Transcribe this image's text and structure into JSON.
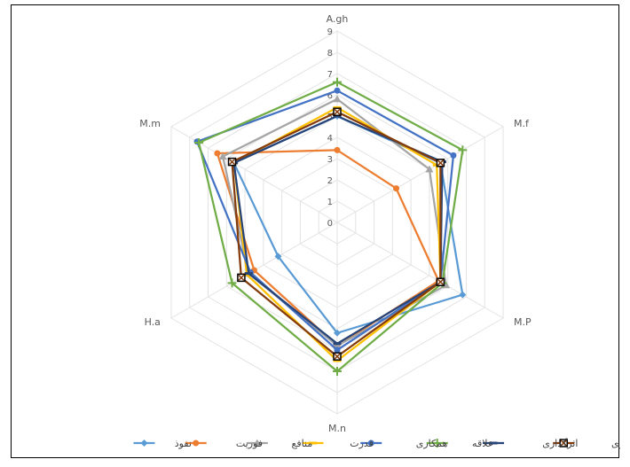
{
  "chart_data": {
    "type": "radar",
    "axes": [
      "A.gh",
      "M.f",
      "M.P",
      "M.n",
      "H.a",
      "M.m"
    ],
    "rlim": [
      0,
      9
    ],
    "ticks": [
      "0",
      "1",
      "2",
      "3",
      "4",
      "5",
      "6",
      "7",
      "8",
      "9"
    ],
    "grid": true,
    "legend_position": "bottom",
    "series": [
      {
        "name": "نفوذ",
        "color": "#5B9BD5",
        "marker": "diamond",
        "values": [
          5.0,
          5.6,
          6.8,
          5.2,
          3.2,
          5.6
        ]
      },
      {
        "name": "فوریت",
        "color": "#ED7D31",
        "marker": "circle",
        "values": [
          3.4,
          3.2,
          5.5,
          5.8,
          4.5,
          6.5
        ]
      },
      {
        "name": "منافع",
        "color": "#A5A5A5",
        "marker": "triangle",
        "values": [
          5.8,
          5.0,
          5.9,
          5.8,
          4.8,
          6.2
        ]
      },
      {
        "name": "قدرت",
        "color": "#FFC000",
        "marker": "dash",
        "values": [
          5.4,
          5.4,
          5.6,
          6.5,
          4.9,
          5.6
        ]
      },
      {
        "name": "همکاری",
        "color": "#4472C4",
        "marker": "circle",
        "values": [
          6.2,
          6.3,
          5.6,
          6.0,
          4.7,
          7.6
        ]
      },
      {
        "name": "علاقه",
        "color": "#70AD47",
        "marker": "plus",
        "values": [
          6.6,
          6.8,
          5.7,
          7.0,
          5.7,
          7.5
        ]
      },
      {
        "name": "اثرگذاری",
        "color": "#264478",
        "marker": "dash",
        "values": [
          5.0,
          5.7,
          5.6,
          5.7,
          4.8,
          5.6
        ]
      },
      {
        "name": "اثرپذیری",
        "color": "#843C0C",
        "marker": "square-x",
        "values": [
          5.2,
          5.6,
          5.6,
          6.3,
          5.2,
          5.7
        ]
      }
    ]
  }
}
